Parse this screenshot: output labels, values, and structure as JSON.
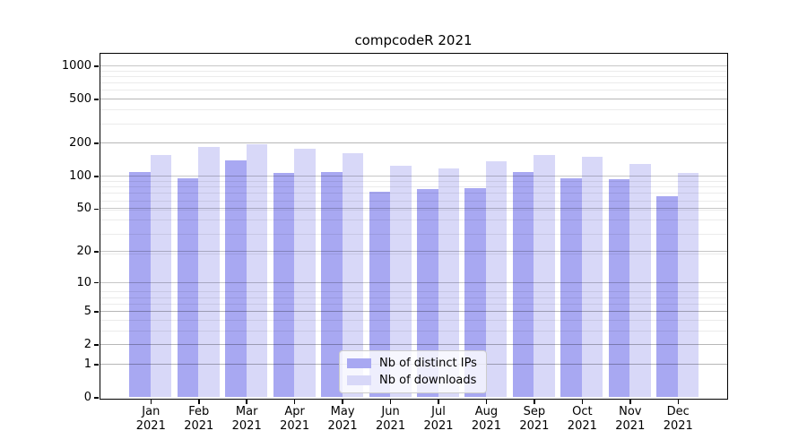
{
  "title": "compcodeR 2021",
  "chart_data": {
    "type": "bar",
    "title": "compcodeR 2021",
    "categories": [
      "Jan 2021",
      "Feb 2021",
      "Mar 2021",
      "Apr 2021",
      "May 2021",
      "Jun 2021",
      "Jul 2021",
      "Aug 2021",
      "Sep 2021",
      "Oct 2021",
      "Nov 2021",
      "Dec 2021"
    ],
    "series": [
      {
        "name": "Nb of distinct IPs",
        "color": "#a8a8f2",
        "values": [
          109,
          95,
          139,
          107,
          108,
          71,
          76,
          78,
          108,
          95,
          93,
          65
        ]
      },
      {
        "name": "Nb of downloads",
        "color": "#d8d8f8",
        "values": [
          155,
          183,
          195,
          176,
          160,
          123,
          118,
          135,
          154,
          150,
          129,
          106
        ]
      }
    ],
    "xlabel": "",
    "ylabel": "",
    "yscale": "log10(value+1)",
    "y_ticks": [
      0,
      1,
      2,
      5,
      10,
      20,
      50,
      100,
      200,
      500,
      1000
    ],
    "ylim": [
      0,
      1300
    ],
    "grid": true,
    "legend_position": "lower center"
  },
  "colors": {
    "background": "#ffffff",
    "axis": "#000000",
    "grid_major": "rgba(0,0,0,0.22)",
    "grid_minor": "rgba(0,0,0,0.08)"
  }
}
